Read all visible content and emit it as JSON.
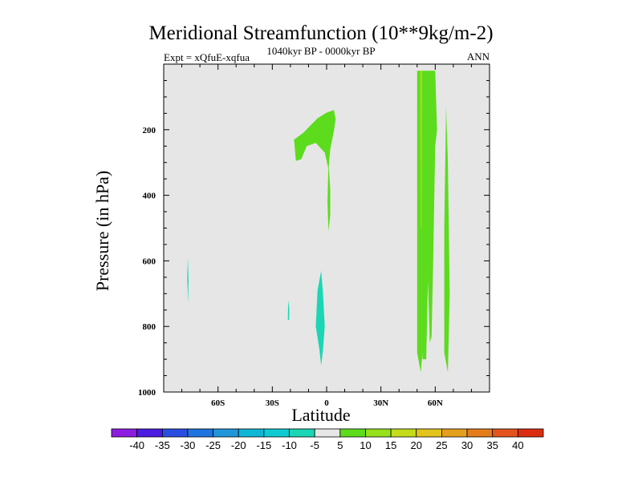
{
  "chart_data": {
    "type": "contour",
    "title": "Meridional Streamfunction (10**9kg/m-2)",
    "subtitle": "1040kyr BP - 0000kyr BP",
    "left_label": "Expt = xQfuE-xqfua",
    "right_label": "ANN",
    "xlabel": "Latitude",
    "ylabel": "Pressure (in hPa)",
    "xlim": [
      -90,
      90
    ],
    "ylim": [
      1000,
      0
    ],
    "x_ticks": [
      {
        "value": -60,
        "label": "60S"
      },
      {
        "value": -30,
        "label": "30S"
      },
      {
        "value": 0,
        "label": "0"
      },
      {
        "value": 30,
        "label": "30N"
      },
      {
        "value": 60,
        "label": "60N"
      }
    ],
    "y_ticks": [
      {
        "value": 200,
        "label": "200"
      },
      {
        "value": 400,
        "label": "400"
      },
      {
        "value": 600,
        "label": "600"
      },
      {
        "value": 800,
        "label": "800"
      },
      {
        "value": 1000,
        "label": "1000"
      }
    ],
    "colorbar": {
      "levels": [
        -40,
        -35,
        -30,
        -25,
        -20,
        -15,
        -10,
        -5,
        5,
        10,
        15,
        20,
        25,
        30,
        35,
        40
      ],
      "labels": [
        "-40",
        "-35",
        "-30",
        "-25",
        "-20",
        "-15",
        "-10",
        "-5",
        "5",
        "10",
        "15",
        "20",
        "25",
        "30",
        "35",
        "40"
      ],
      "colors": [
        "#8c1ce0",
        "#4c1ce0",
        "#2a4ee0",
        "#1f74e0",
        "#1f96d8",
        "#10b6d6",
        "#10cad2",
        "#1ad6b4",
        "#e6e6e6",
        "#5cdc1c",
        "#96e01c",
        "#c4dc1c",
        "#e4c41c",
        "#e4a01c",
        "#e47c1c",
        "#e4541c",
        "#dc2c10"
      ]
    },
    "regions": [
      {
        "level": "5 to 10",
        "color": "#5cdc1c",
        "points": [
          [
            -18,
            230
          ],
          [
            -13,
            210
          ],
          [
            -5,
            165
          ],
          [
            0,
            148
          ],
          [
            4,
            140
          ],
          [
            5,
            168
          ],
          [
            4,
            205
          ],
          [
            2,
            260
          ],
          [
            1,
            320
          ],
          [
            -1,
            270
          ],
          [
            -6,
            240
          ],
          [
            -11,
            250
          ],
          [
            -14,
            290
          ],
          [
            -17,
            295
          ]
        ]
      },
      {
        "level": "5 to 10",
        "color": "#5cdc1c",
        "points": [
          [
            1,
            300
          ],
          [
            2,
            380
          ],
          [
            2,
            460
          ],
          [
            1,
            510
          ],
          [
            0.5,
            420
          ]
        ]
      },
      {
        "level": "5 to 10",
        "color": "#5cdc1c",
        "points": [
          [
            50,
            20
          ],
          [
            52,
            20
          ],
          [
            53,
            600
          ],
          [
            53,
            880
          ],
          [
            52,
            940
          ],
          [
            50,
            880
          ],
          [
            50,
            500
          ]
        ]
      },
      {
        "level": "5 to 10",
        "color": "#5cdc1c",
        "points": [
          [
            52,
            20
          ],
          [
            60,
            20
          ],
          [
            61,
            200
          ],
          [
            60,
            250
          ],
          [
            59,
            560
          ],
          [
            58,
            830
          ],
          [
            57,
            850
          ],
          [
            56,
            660
          ],
          [
            55,
            900
          ],
          [
            53,
            900
          ]
        ]
      },
      {
        "level": "5 to 10",
        "color": "#5cdc1c",
        "points": [
          [
            66,
            130
          ],
          [
            67,
            300
          ],
          [
            68,
            700
          ],
          [
            67,
            940
          ],
          [
            65,
            880
          ],
          [
            65,
            500
          ]
        ]
      },
      {
        "level": "10 to 15",
        "color": "#96e01c",
        "points": [
          [
            51.5,
            20
          ],
          [
            52.8,
            20
          ],
          [
            52.5,
            500
          ],
          [
            52,
            500
          ]
        ]
      },
      {
        "level": "-5 to -10",
        "color": "#1ad6b4",
        "points": [
          [
            -76.6,
            590
          ],
          [
            -76.3,
            660
          ],
          [
            -76.5,
            730
          ],
          [
            -77,
            650
          ]
        ]
      },
      {
        "level": "-5 to -10",
        "color": "#1ad6b4",
        "points": [
          [
            -21,
            720
          ],
          [
            -20.6,
            750
          ],
          [
            -20.7,
            780
          ],
          [
            -21.4,
            780
          ],
          [
            -21.3,
            740
          ]
        ]
      },
      {
        "level": "-5 to -10",
        "color": "#1ad6b4",
        "points": [
          [
            -5,
            690
          ],
          [
            -3,
            630
          ],
          [
            -2,
            700
          ],
          [
            -1,
            800
          ],
          [
            -2,
            870
          ],
          [
            -3,
            920
          ],
          [
            -4,
            870
          ],
          [
            -6,
            800
          ]
        ]
      }
    ]
  }
}
